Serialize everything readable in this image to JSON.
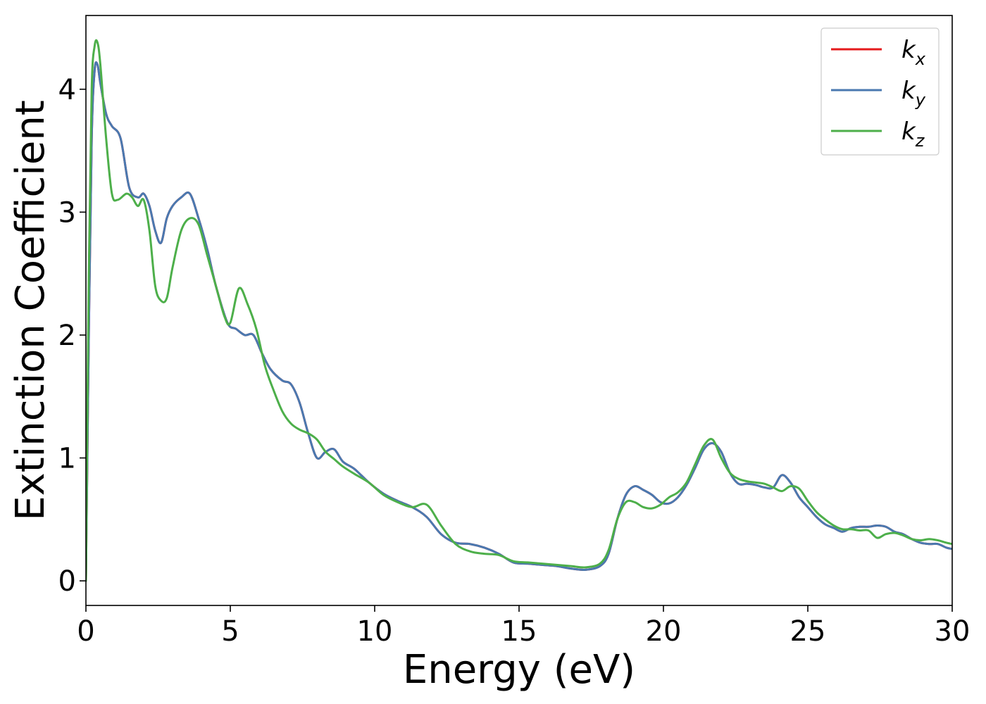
{
  "chart_data": {
    "type": "line",
    "title": "",
    "xlabel": "Energy (eV)",
    "ylabel": "Extinction Coefficient",
    "xlim": [
      0,
      30
    ],
    "ylim": [
      -0.2,
      4.6
    ],
    "xticks": [
      0,
      5,
      10,
      15,
      20,
      25,
      30
    ],
    "yticks": [
      0,
      1,
      2,
      3,
      4
    ],
    "xtick_labels": [
      "0",
      "5",
      "10",
      "15",
      "20",
      "25",
      "30"
    ],
    "ytick_labels": [
      "0",
      "1",
      "2",
      "3",
      "4"
    ],
    "grid": false,
    "legend_position": "top-right",
    "series": [
      {
        "name": "k_x",
        "legend_base": "k",
        "legend_sub": "x",
        "color": "#e41a1c",
        "x": [
          0,
          0.1,
          0.2,
          0.3,
          0.4,
          0.5,
          0.7,
          0.9,
          1.2,
          1.5,
          1.8,
          2.0,
          2.2,
          2.4,
          2.6,
          2.8,
          3.0,
          3.3,
          3.6,
          3.9,
          4.2,
          4.5,
          4.9,
          5.2,
          5.5,
          5.8,
          6.1,
          6.4,
          6.8,
          7.1,
          7.4,
          7.7,
          8.0,
          8.3,
          8.6,
          8.9,
          9.3,
          9.8,
          10.3,
          10.8,
          11.3,
          11.8,
          12.3,
          12.8,
          13.3,
          13.8,
          14.3,
          14.8,
          15.3,
          15.8,
          16.3,
          16.8,
          17.3,
          17.8,
          18.1,
          18.4,
          18.7,
          19.0,
          19.3,
          19.6,
          19.9,
          20.2,
          20.5,
          20.8,
          21.1,
          21.4,
          21.7,
          22.0,
          22.3,
          22.6,
          22.9,
          23.2,
          23.5,
          23.8,
          24.1,
          24.4,
          24.7,
          25.0,
          25.3,
          25.6,
          25.9,
          26.2,
          26.5,
          26.8,
          27.1,
          27.4,
          27.7,
          28.0,
          28.3,
          28.6,
          28.9,
          29.2,
          29.5,
          29.8,
          30.0
        ],
        "y": [
          0.0,
          2.0,
          3.6,
          4.15,
          4.2,
          4.05,
          3.8,
          3.7,
          3.6,
          3.2,
          3.12,
          3.15,
          3.05,
          2.85,
          2.75,
          2.95,
          3.05,
          3.12,
          3.15,
          2.95,
          2.7,
          2.4,
          2.1,
          2.05,
          2.0,
          2.0,
          1.85,
          1.72,
          1.63,
          1.6,
          1.45,
          1.2,
          1.0,
          1.05,
          1.07,
          0.97,
          0.91,
          0.8,
          0.71,
          0.65,
          0.6,
          0.52,
          0.38,
          0.31,
          0.3,
          0.27,
          0.22,
          0.15,
          0.14,
          0.13,
          0.12,
          0.1,
          0.09,
          0.12,
          0.22,
          0.5,
          0.7,
          0.77,
          0.74,
          0.7,
          0.64,
          0.63,
          0.68,
          0.78,
          0.92,
          1.07,
          1.12,
          1.05,
          0.88,
          0.79,
          0.79,
          0.78,
          0.76,
          0.76,
          0.86,
          0.8,
          0.68,
          0.6,
          0.52,
          0.46,
          0.43,
          0.4,
          0.43,
          0.44,
          0.44,
          0.45,
          0.44,
          0.4,
          0.38,
          0.34,
          0.31,
          0.3,
          0.3,
          0.27,
          0.26
        ]
      },
      {
        "name": "k_y",
        "legend_base": "k",
        "legend_sub": "y",
        "color": "#4a79b0",
        "x": [
          0,
          0.1,
          0.2,
          0.3,
          0.4,
          0.5,
          0.7,
          0.9,
          1.2,
          1.5,
          1.8,
          2.0,
          2.2,
          2.4,
          2.6,
          2.8,
          3.0,
          3.3,
          3.6,
          3.9,
          4.2,
          4.5,
          4.9,
          5.2,
          5.5,
          5.8,
          6.1,
          6.4,
          6.8,
          7.1,
          7.4,
          7.7,
          8.0,
          8.3,
          8.6,
          8.9,
          9.3,
          9.8,
          10.3,
          10.8,
          11.3,
          11.8,
          12.3,
          12.8,
          13.3,
          13.8,
          14.3,
          14.8,
          15.3,
          15.8,
          16.3,
          16.8,
          17.3,
          17.8,
          18.1,
          18.4,
          18.7,
          19.0,
          19.3,
          19.6,
          19.9,
          20.2,
          20.5,
          20.8,
          21.1,
          21.4,
          21.7,
          22.0,
          22.3,
          22.6,
          22.9,
          23.2,
          23.5,
          23.8,
          24.1,
          24.4,
          24.7,
          25.0,
          25.3,
          25.6,
          25.9,
          26.2,
          26.5,
          26.8,
          27.1,
          27.4,
          27.7,
          28.0,
          28.3,
          28.6,
          28.9,
          29.2,
          29.5,
          29.8,
          30.0
        ],
        "y": [
          0.0,
          2.0,
          3.6,
          4.15,
          4.2,
          4.05,
          3.8,
          3.7,
          3.6,
          3.2,
          3.12,
          3.15,
          3.05,
          2.85,
          2.75,
          2.95,
          3.05,
          3.12,
          3.15,
          2.95,
          2.7,
          2.4,
          2.1,
          2.05,
          2.0,
          2.0,
          1.85,
          1.72,
          1.63,
          1.6,
          1.45,
          1.2,
          1.0,
          1.05,
          1.07,
          0.97,
          0.91,
          0.8,
          0.71,
          0.65,
          0.6,
          0.52,
          0.38,
          0.31,
          0.3,
          0.27,
          0.22,
          0.15,
          0.14,
          0.13,
          0.12,
          0.1,
          0.09,
          0.12,
          0.22,
          0.5,
          0.7,
          0.77,
          0.74,
          0.7,
          0.64,
          0.63,
          0.68,
          0.78,
          0.92,
          1.07,
          1.12,
          1.05,
          0.88,
          0.79,
          0.79,
          0.78,
          0.76,
          0.76,
          0.86,
          0.8,
          0.68,
          0.6,
          0.52,
          0.46,
          0.43,
          0.4,
          0.43,
          0.44,
          0.44,
          0.45,
          0.44,
          0.4,
          0.38,
          0.34,
          0.31,
          0.3,
          0.3,
          0.27,
          0.26
        ]
      },
      {
        "name": "k_z",
        "legend_base": "k",
        "legend_sub": "z",
        "color": "#4daf4a",
        "x": [
          0,
          0.1,
          0.2,
          0.3,
          0.4,
          0.5,
          0.7,
          0.9,
          1.1,
          1.4,
          1.6,
          1.8,
          2.0,
          2.2,
          2.4,
          2.6,
          2.8,
          3.0,
          3.3,
          3.6,
          3.9,
          4.2,
          4.5,
          4.8,
          5.0,
          5.3,
          5.6,
          5.9,
          6.2,
          6.5,
          6.8,
          7.1,
          7.4,
          7.7,
          8.0,
          8.3,
          8.6,
          8.9,
          9.3,
          9.8,
          10.3,
          10.8,
          11.3,
          11.8,
          12.3,
          12.8,
          13.3,
          13.8,
          14.3,
          14.8,
          15.3,
          15.8,
          16.3,
          16.8,
          17.3,
          17.8,
          18.1,
          18.4,
          18.7,
          19.0,
          19.3,
          19.6,
          19.9,
          20.2,
          20.5,
          20.8,
          21.1,
          21.4,
          21.7,
          22.0,
          22.3,
          22.6,
          22.9,
          23.2,
          23.5,
          23.8,
          24.1,
          24.4,
          24.7,
          25.0,
          25.3,
          25.6,
          25.9,
          26.2,
          26.5,
          26.8,
          27.1,
          27.4,
          27.7,
          28.0,
          28.3,
          28.6,
          28.9,
          29.2,
          29.5,
          29.8,
          30.0
        ],
        "y": [
          0.0,
          2.5,
          4.0,
          4.35,
          4.38,
          4.2,
          3.6,
          3.15,
          3.1,
          3.15,
          3.12,
          3.05,
          3.1,
          2.85,
          2.4,
          2.28,
          2.3,
          2.55,
          2.85,
          2.95,
          2.9,
          2.65,
          2.4,
          2.15,
          2.1,
          2.38,
          2.25,
          2.05,
          1.75,
          1.55,
          1.38,
          1.28,
          1.23,
          1.2,
          1.15,
          1.05,
          0.99,
          0.93,
          0.87,
          0.8,
          0.7,
          0.64,
          0.6,
          0.62,
          0.45,
          0.3,
          0.24,
          0.22,
          0.21,
          0.16,
          0.15,
          0.14,
          0.13,
          0.12,
          0.11,
          0.14,
          0.25,
          0.5,
          0.64,
          0.64,
          0.6,
          0.59,
          0.62,
          0.68,
          0.72,
          0.8,
          0.95,
          1.1,
          1.15,
          1.0,
          0.88,
          0.83,
          0.81,
          0.8,
          0.79,
          0.76,
          0.73,
          0.77,
          0.75,
          0.65,
          0.56,
          0.5,
          0.45,
          0.42,
          0.42,
          0.41,
          0.41,
          0.35,
          0.38,
          0.39,
          0.37,
          0.34,
          0.33,
          0.34,
          0.33,
          0.31,
          0.3
        ]
      }
    ]
  }
}
